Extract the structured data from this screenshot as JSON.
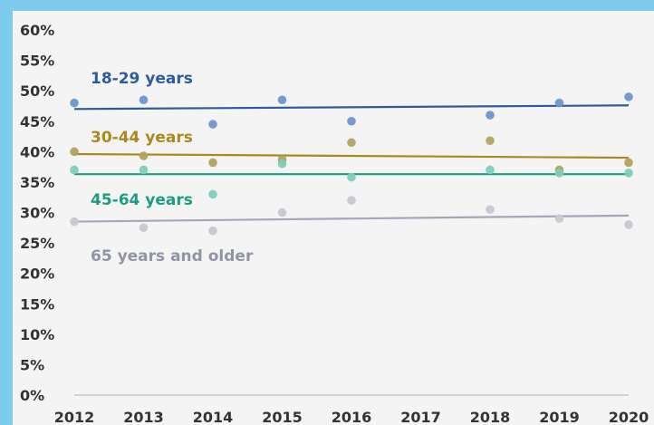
{
  "colors": {
    "frame": "#7ecbee",
    "panel": "#f4f4f4",
    "axis": "#c8c8c8",
    "tick_text": "#333333"
  },
  "chart_data": {
    "type": "scatter",
    "title": "",
    "xlabel": "",
    "ylabel": "",
    "x": [
      2012,
      2013,
      2014,
      2015,
      2016,
      2017,
      2018,
      2019,
      2020
    ],
    "x_tick_labels": [
      "2012",
      "2013",
      "2014",
      "2015",
      "2016",
      "2017",
      "2018",
      "2019",
      "2020"
    ],
    "y_tick_labels": [
      "0%",
      "5%",
      "10%",
      "15%",
      "20%",
      "25%",
      "30%",
      "35%",
      "40%",
      "45%",
      "50%",
      "55%",
      "60%"
    ],
    "ylim": [
      0,
      60
    ],
    "grid": false,
    "legend": "inline labels on chart",
    "trend_lines": true,
    "series": [
      {
        "name": "18-29 years",
        "color": "#2e5c9a",
        "point_color": "#6f93cc",
        "points": [
          [
            2012,
            48
          ],
          [
            2013,
            48.5
          ],
          [
            2014,
            44.5
          ],
          [
            2015,
            48.5
          ],
          [
            2016,
            45
          ],
          [
            2018,
            46
          ],
          [
            2019,
            48
          ],
          [
            2020,
            49
          ]
        ],
        "trend": [
          47,
          47.6
        ]
      },
      {
        "name": "30-44 years",
        "color": "#a88a1e",
        "point_color": "#b0a35e",
        "points": [
          [
            2012,
            40
          ],
          [
            2013,
            39.3
          ],
          [
            2014,
            38.2
          ],
          [
            2015,
            38.7
          ],
          [
            2016,
            41.5
          ],
          [
            2018,
            41.8
          ],
          [
            2019,
            37
          ],
          [
            2020,
            38.2
          ]
        ],
        "trend": [
          39.6,
          39
        ]
      },
      {
        "name": "45-64 years",
        "color": "#1c9c83",
        "point_color": "#7ccdb8",
        "points": [
          [
            2012,
            37
          ],
          [
            2013,
            37
          ],
          [
            2014,
            33
          ],
          [
            2015,
            38
          ],
          [
            2016,
            35.8
          ],
          [
            2018,
            37
          ],
          [
            2019,
            36.5
          ],
          [
            2020,
            36.5
          ]
        ],
        "trend": [
          36.3,
          36.3
        ]
      },
      {
        "name": "65 years and older",
        "color": "#a3a7b8",
        "point_color": "#c6c8d0",
        "points": [
          [
            2012,
            28.5
          ],
          [
            2013,
            27.5
          ],
          [
            2014,
            27
          ],
          [
            2015,
            30
          ],
          [
            2016,
            32
          ],
          [
            2018,
            30.5
          ],
          [
            2019,
            29
          ],
          [
            2020,
            28
          ]
        ],
        "trend": [
          28.5,
          29.5
        ]
      }
    ]
  }
}
